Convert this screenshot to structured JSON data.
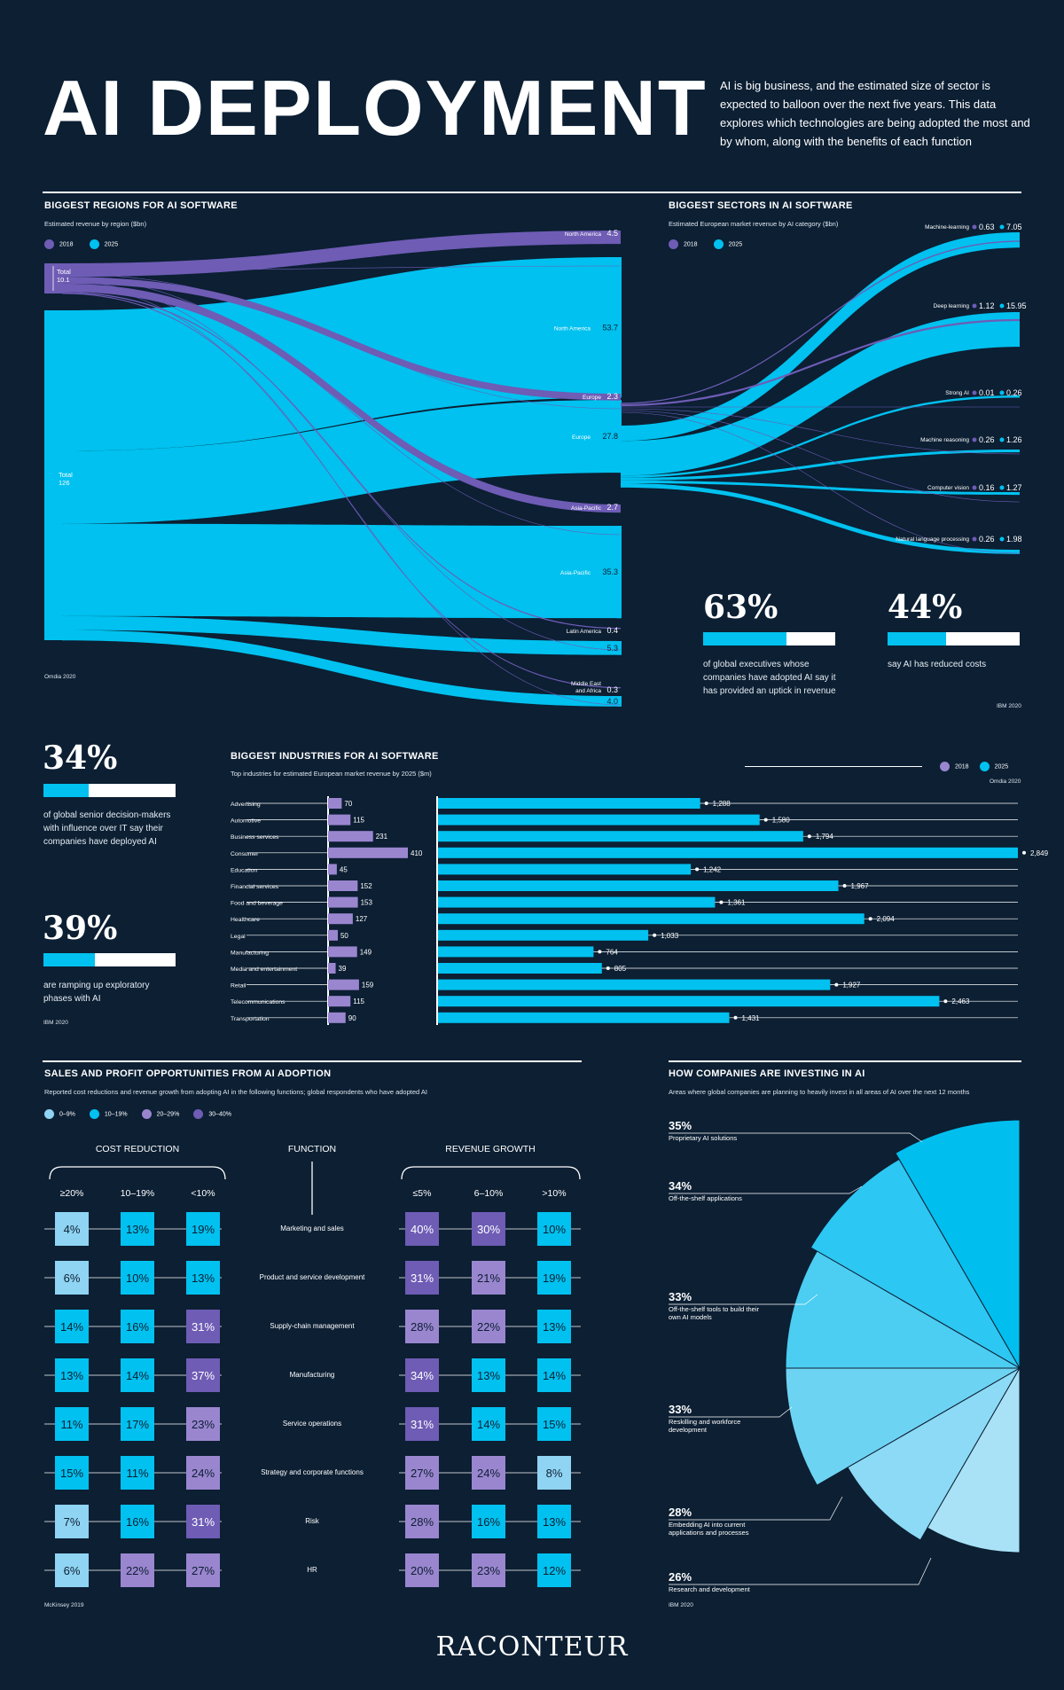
{
  "header": {
    "title": "AI DEPLOYMENT",
    "intro": "AI is big business, and the estimated size of sector is expected to balloon over the next five years. This data explores which technologies are being adopted the most and by whom, along with the benefits of each function"
  },
  "colors": {
    "background": "#0c1f33",
    "y2018": "#6e5cb5",
    "y2025": "#00c1ef",
    "lilac": "#9a86cf",
    "light": "#8fd4f2"
  },
  "regions": {
    "title": "BIGGEST REGIONS FOR AI SOFTWARE",
    "subtitle": "Estimated revenue by region ($bn)",
    "legend_2018": "2018",
    "legend_2025": "2025",
    "total_2018_label": "Total",
    "total_2018_value": "10.1",
    "total_2025_label": "Total",
    "total_2025_value": "126",
    "source": "Omdia 2020"
  },
  "sectors": {
    "title": "BIGGEST SECTORS IN AI SOFTWARE",
    "subtitle": "Estimated European market revenue by AI category ($bn)",
    "legend_2018": "2018",
    "legend_2025": "2025"
  },
  "chart_data": [
    {
      "type": "sankey",
      "title": "BIGGEST REGIONS FOR AI SOFTWARE",
      "subtitle": "Estimated revenue by region ($bn)",
      "totals": {
        "2018": 10.1,
        "2025": 126
      },
      "nodes": [
        {
          "name": "North America",
          "2018": 4.5,
          "2025": 53.7,
          "label_2018": "4.5",
          "label_2025": "53.7"
        },
        {
          "name": "Europe",
          "2018": 2.3,
          "2025": 27.8,
          "label_2018": "2.3",
          "label_2025": "27.8"
        },
        {
          "name": "Asia-Pacific",
          "2018": 2.7,
          "2025": 35.3,
          "label_2018": "2.7",
          "label_2025": "35.3"
        },
        {
          "name": "Latin America",
          "2018": 0.4,
          "2025": 5.3,
          "label_2018": "0.4",
          "label_2025": "5.3"
        },
        {
          "name": "Middle East and Africa",
          "2018": 0.3,
          "2025": 4.0,
          "label_2018": "0.3",
          "label_2025": "4.0"
        }
      ]
    },
    {
      "type": "sankey",
      "title": "BIGGEST SECTORS IN AI SOFTWARE",
      "subtitle": "Estimated European market revenue by AI category ($bn)",
      "nodes": [
        {
          "name": "Machine-learning",
          "2018": 0.63,
          "2025": 7.05
        },
        {
          "name": "Deep learning",
          "2018": 1.12,
          "2025": 15.95
        },
        {
          "name": "Strong AI",
          "2018": 0.01,
          "2025": 0.26
        },
        {
          "name": "Machine reasoning",
          "2018": 0.26,
          "2025": 1.26
        },
        {
          "name": "Computer vision",
          "2018": 0.16,
          "2025": 1.27
        },
        {
          "name": "Natural language processing",
          "2018": 0.26,
          "2025": 1.98
        }
      ]
    },
    {
      "type": "bar",
      "title": "BIGGEST INDUSTRIES FOR AI SOFTWARE",
      "subtitle": "Top industries for estimated European market revenue by 2025 ($m)",
      "source": "Omdia 2020",
      "categories": [
        "Advertising",
        "Automotive",
        "Business services",
        "Consumer",
        "Education",
        "Financial services",
        "Food and beverage",
        "Healthcare",
        "Legal",
        "Manufacturing",
        "Media and entertainment",
        "Retail",
        "Telecommunications",
        "Transportation"
      ],
      "series": [
        {
          "name": "2018",
          "values": [
            70,
            115,
            231,
            410,
            45,
            152,
            153,
            127,
            50,
            149,
            39,
            159,
            115,
            90
          ],
          "labels": [
            "70",
            "115",
            "231",
            "410",
            "45",
            "152",
            "153",
            "127",
            "50",
            "149",
            "39",
            "159",
            "115",
            "90"
          ]
        },
        {
          "name": "2025",
          "values": [
            1288,
            1580,
            1794,
            2849,
            1242,
            1967,
            1361,
            2094,
            1033,
            764,
            805,
            1927,
            2463,
            1431
          ],
          "labels": [
            "1,288",
            "1,580",
            "1,794",
            "2,849",
            "1,242",
            "1,967",
            "1,361",
            "2,094",
            "1,033",
            "764",
            "805",
            "1,927",
            "2,463",
            "1,431"
          ]
        }
      ]
    },
    {
      "type": "table",
      "title": "SALES AND PROFIT OPPORTUNITIES FROM AI ADOPTION",
      "subtitle": "Reported cost reductions and revenue growth from adopting AI in the following functions; global respondents who have adopted AI",
      "source": "McKinsey 2019",
      "legend": [
        "0–9%",
        "10–19%",
        "20–29%",
        "30–40%"
      ],
      "columns": [
        "≥20%",
        "10–19%",
        "<10%",
        "≤5%",
        "6–10%",
        ">10%"
      ],
      "rows": [
        {
          "function": "Marketing and sales",
          "values": [
            "4%",
            "13%",
            "19%",
            "40%",
            "30%",
            "10%"
          ]
        },
        {
          "function": "Product and service development",
          "values": [
            "6%",
            "10%",
            "13%",
            "31%",
            "21%",
            "19%"
          ]
        },
        {
          "function": "Supply-chain management",
          "values": [
            "14%",
            "16%",
            "31%",
            "28%",
            "22%",
            "13%"
          ]
        },
        {
          "function": "Manufacturing",
          "values": [
            "13%",
            "14%",
            "37%",
            "34%",
            "13%",
            "14%"
          ]
        },
        {
          "function": "Service operations",
          "values": [
            "11%",
            "17%",
            "23%",
            "31%",
            "14%",
            "15%"
          ]
        },
        {
          "function": "Strategy and corporate functions",
          "values": [
            "15%",
            "11%",
            "24%",
            "27%",
            "24%",
            "8%"
          ]
        },
        {
          "function": "Risk",
          "values": [
            "7%",
            "16%",
            "31%",
            "28%",
            "16%",
            "13%"
          ]
        },
        {
          "function": "HR",
          "values": [
            "6%",
            "22%",
            "27%",
            "20%",
            "23%",
            "12%"
          ]
        }
      ]
    },
    {
      "type": "pie",
      "title": "HOW COMPANIES ARE INVESTING IN AI",
      "subtitle": "Areas where global companies are planning to heavily invest in all areas of AI over the next 12 months",
      "source": "IBM 2020",
      "categories": [
        "Proprietary AI solutions",
        "Off-the-shelf applications",
        "Off-the-shelf tools to build their own AI models",
        "Reskilling and workforce development",
        "Embedding AI into current applications and processes",
        "Research and development"
      ],
      "values": [
        35,
        34,
        33,
        33,
        28,
        26
      ],
      "labels": [
        "35%",
        "34%",
        "33%",
        "33%",
        "28%",
        "26%"
      ]
    }
  ],
  "stats_right": {
    "stat1_value": "63%",
    "stat1_fraction": 0.63,
    "stat1_text": "of global executives whose companies have adopted AI say it has provided an uptick in revenue",
    "stat2_value": "44%",
    "stat2_fraction": 0.44,
    "stat2_text": "say AI has reduced costs",
    "source": "IBM 2020"
  },
  "stats_left": {
    "stat1_value": "34%",
    "stat1_fraction": 0.34,
    "stat1_text": "of global senior decision-makers with influence over IT say their companies have deployed AI",
    "stat2_value": "39%",
    "stat2_fraction": 0.39,
    "stat2_text": "are ramping up exploratory phases with AI",
    "source": "IBM 2020"
  },
  "industries": {
    "title": "BIGGEST INDUSTRIES FOR AI SOFTWARE",
    "subtitle": "Top industries for estimated European market revenue by 2025 ($m)",
    "legend_2018": "2018",
    "legend_2025": "2025",
    "source": "Omdia 2020"
  },
  "opportunities": {
    "title": "SALES AND PROFIT OPPORTUNITIES FROM AI ADOPTION",
    "subtitle": "Reported cost reductions and revenue growth from adopting AI in the following functions; global respondents who have adopted AI",
    "cost_header": "COST REDUCTION",
    "function_header": "FUNCTION",
    "revenue_header": "REVENUE GROWTH",
    "source": "McKinsey 2019"
  },
  "investing": {
    "title": "HOW COMPANIES ARE INVESTING IN AI",
    "subtitle": "Areas where global companies are planning to heavily invest in all areas of AI over the next 12 months",
    "source": "IBM 2020"
  },
  "footer": {
    "brand": "RACONTEUR"
  }
}
